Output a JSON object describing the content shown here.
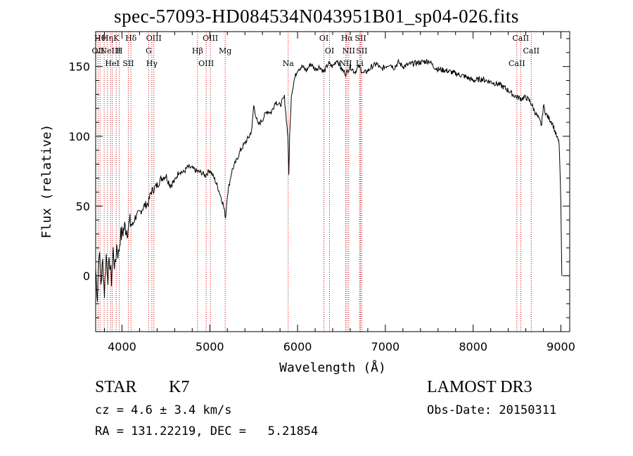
{
  "header": {
    "title": "spec-57093-HD084534N043951B01_sp04-026.fits"
  },
  "info": {
    "class_label": "STAR",
    "subclass_label": "K7",
    "survey": "LAMOST DR3",
    "cz": "cz = 4.6 ± 3.4 km/s",
    "obs_date": "Obs-Date: 20150311",
    "coords": "RA = 131.22219, DEC =   5.21854"
  },
  "chart_data": {
    "type": "line",
    "title": "spec-57093-HD084534N043951B01_sp04-026.fits",
    "xlabel": "Wavelength (Å)",
    "ylabel": "Flux (relative)",
    "xlim": [
      3700,
      9100
    ],
    "ylim": [
      -40,
      175
    ],
    "xticks": [
      4000,
      5000,
      6000,
      7000,
      8000,
      9000
    ],
    "yticks": [
      0,
      50,
      100,
      150
    ],
    "grid": false,
    "series": [
      {
        "x": [
          3700,
          3720,
          3740,
          3760,
          3780,
          3800,
          3820,
          3840,
          3860,
          3880,
          3900,
          3920,
          3940,
          3960,
          3980,
          4000,
          4030,
          4060,
          4090,
          4120,
          4150,
          4200,
          4250,
          4300,
          4330,
          4360,
          4400,
          4450,
          4500,
          4550,
          4600,
          4650,
          4700,
          4750,
          4800,
          4850,
          4900,
          4950,
          5000,
          5050,
          5100,
          5150,
          5180,
          5200,
          5250,
          5300,
          5350,
          5400,
          5450,
          5480,
          5500,
          5550,
          5600,
          5650,
          5700,
          5750,
          5800,
          5850,
          5890,
          5900,
          5910,
          5930,
          5960,
          6000,
          6050,
          6100,
          6150,
          6200,
          6250,
          6300,
          6350,
          6400,
          6450,
          6500,
          6550,
          6600,
          6650,
          6700,
          6750,
          6800,
          6850,
          6900,
          6950,
          7000,
          7050,
          7100,
          7150,
          7200,
          7300,
          7400,
          7500,
          7550,
          7600,
          7700,
          7800,
          7900,
          8000,
          8100,
          8200,
          8300,
          8400,
          8450,
          8500,
          8550,
          8600,
          8650,
          8700,
          8750,
          8780,
          8800,
          8830,
          8860,
          8900,
          8950,
          8980,
          9000,
          9010
        ],
        "y": [
          5,
          -15,
          20,
          -5,
          10,
          -12,
          15,
          0,
          10,
          -3,
          18,
          5,
          22,
          15,
          28,
          30,
          35,
          33,
          38,
          36,
          42,
          45,
          50,
          52,
          60,
          62,
          65,
          70,
          72,
          65,
          68,
          75,
          74,
          78,
          77,
          75,
          74,
          72,
          76,
          70,
          62,
          52,
          42,
          58,
          75,
          82,
          90,
          95,
          100,
          105,
          122,
          108,
          112,
          118,
          117,
          125,
          122,
          128,
          100,
          72,
          100,
          130,
          140,
          148,
          150,
          147,
          152,
          148,
          150,
          146,
          152,
          150,
          155,
          148,
          145,
          150,
          146,
          150,
          145,
          147,
          150,
          152,
          148,
          150,
          152,
          149,
          153,
          150,
          152,
          153,
          154,
          150,
          148,
          147,
          145,
          143,
          140,
          141,
          139,
          137,
          133,
          130,
          128,
          127,
          128,
          125,
          118,
          112,
          108,
          122,
          116,
          113,
          110,
          100,
          95,
          50,
          0
        ]
      }
    ],
    "lines": [
      {
        "wave": 3750,
        "label": "Hθ"
      },
      {
        "wave": 3727,
        "label": "OII"
      },
      {
        "wave": 3797,
        "label": ""
      },
      {
        "wave": 3835,
        "label": "Hη"
      },
      {
        "wave": 3869,
        "label": "NeIII"
      },
      {
        "wave": 3889,
        "label": "HeI"
      },
      {
        "wave": 3934,
        "label": "K"
      },
      {
        "wave": 3970,
        "label": "H"
      },
      {
        "wave": 4072,
        "label": "SII"
      },
      {
        "wave": 4102,
        "label": "Hδ"
      },
      {
        "wave": 4304,
        "label": "G"
      },
      {
        "wave": 4340,
        "label": "Hγ"
      },
      {
        "wave": 4363,
        "label": "OIII"
      },
      {
        "wave": 4861,
        "label": "Hβ"
      },
      {
        "wave": 4959,
        "label": "OIII"
      },
      {
        "wave": 5007,
        "label": "OIII"
      },
      {
        "wave": 5175,
        "label": "Mg"
      },
      {
        "wave": 5893,
        "label": "Na"
      },
      {
        "wave": 6300,
        "label": "OI"
      },
      {
        "wave": 6364,
        "label": "OI"
      },
      {
        "wave": 6548,
        "label": "NII"
      },
      {
        "wave": 6563,
        "label": "Hα"
      },
      {
        "wave": 6583,
        "label": "NII"
      },
      {
        "wave": 6707,
        "label": "Li"
      },
      {
        "wave": 6717,
        "label": "SII"
      },
      {
        "wave": 6731,
        "label": "SII"
      },
      {
        "wave": 8498,
        "label": "CaII"
      },
      {
        "wave": 8542,
        "label": "CaII"
      },
      {
        "wave": 8662,
        "label": "CaII"
      }
    ]
  }
}
